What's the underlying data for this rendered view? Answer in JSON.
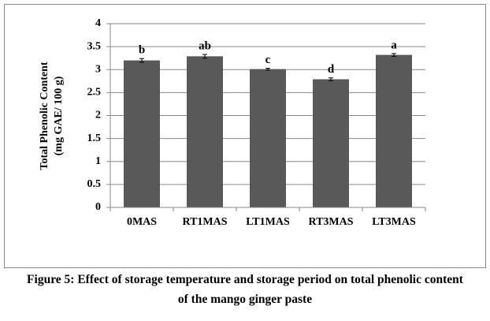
{
  "chart_data": {
    "type": "bar",
    "y_label_lines": [
      "Total  Phenolic Content",
      "(mg GAE/ 100 g)"
    ],
    "categories": [
      "0MAS",
      "RT1MAS",
      "LT1MAS",
      "RT3MAS",
      "LT3MAS"
    ],
    "values": [
      3.2,
      3.29,
      3.01,
      2.79,
      3.32
    ],
    "errors": [
      0.04,
      0.04,
      0.02,
      0.03,
      0.03
    ],
    "significance_letters": [
      "b",
      "ab",
      "c",
      "d",
      "a"
    ],
    "color": "#595959",
    "ylim": [
      0,
      4
    ],
    "yticks": [
      0,
      0.5,
      1,
      1.5,
      2,
      2.5,
      3,
      3.5,
      4
    ],
    "grid": true
  },
  "caption": "Figure 5: Effect of storage temperature and storage period on total phenolic content of the mango ginger paste"
}
